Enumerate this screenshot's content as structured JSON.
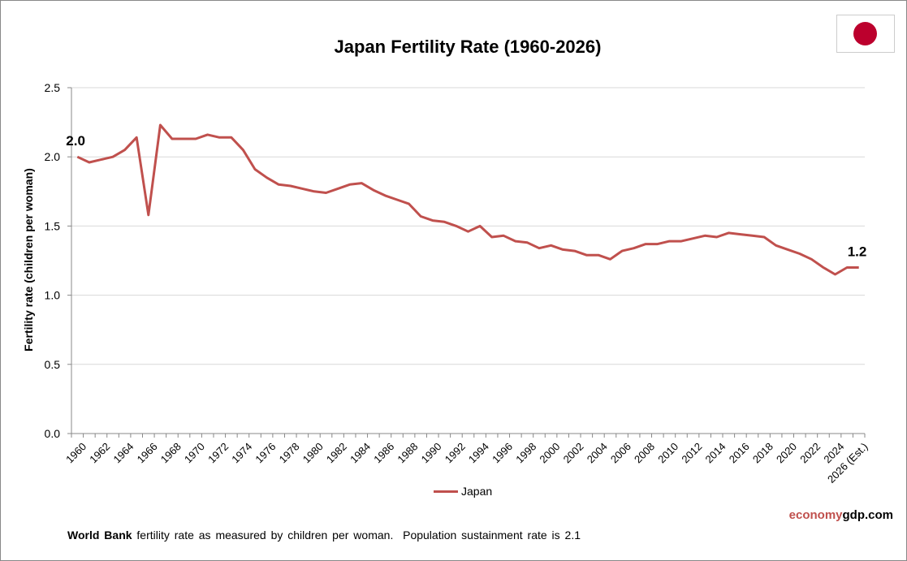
{
  "chart_data": {
    "type": "line",
    "title": "Japan Fertility Rate (1960-2026)",
    "ylabel": "Fertility rate (children per woman)",
    "xlabel": "",
    "ylim": [
      0,
      2.5
    ],
    "yticks": [
      "0.0",
      "0.5",
      "1.0",
      "1.5",
      "2.0",
      "2.5"
    ],
    "grid": true,
    "legend": "bottom",
    "x": [
      1960,
      1961,
      1962,
      1963,
      1964,
      1965,
      1966,
      1967,
      1968,
      1969,
      1970,
      1971,
      1972,
      1973,
      1974,
      1975,
      1976,
      1977,
      1978,
      1979,
      1980,
      1981,
      1982,
      1983,
      1984,
      1985,
      1986,
      1987,
      1988,
      1989,
      1990,
      1991,
      1992,
      1993,
      1994,
      1995,
      1996,
      1997,
      1998,
      1999,
      2000,
      2001,
      2002,
      2003,
      2004,
      2005,
      2006,
      2007,
      2008,
      2009,
      2010,
      2011,
      2012,
      2013,
      2014,
      2015,
      2016,
      2017,
      2018,
      2019,
      2020,
      2021,
      2022,
      2023,
      2024,
      2025,
      2026
    ],
    "xtick_labels": [
      "1960",
      "1962",
      "1964",
      "1966",
      "1968",
      "1970",
      "1972",
      "1974",
      "1976",
      "1978",
      "1980",
      "1982",
      "1984",
      "1986",
      "1988",
      "1990",
      "1992",
      "1994",
      "1996",
      "1998",
      "2000",
      "2002",
      "2004",
      "2006",
      "2008",
      "2010",
      "2012",
      "2014",
      "2016",
      "2018",
      "2020",
      "2022",
      "2024",
      "2026 (Est.)"
    ],
    "series": [
      {
        "name": "Japan",
        "color": "#c0504d",
        "values": [
          2.0,
          1.96,
          1.98,
          2.0,
          2.05,
          2.14,
          1.58,
          2.23,
          2.13,
          2.13,
          2.13,
          2.16,
          2.14,
          2.14,
          2.05,
          1.91,
          1.85,
          1.8,
          1.79,
          1.77,
          1.75,
          1.74,
          1.77,
          1.8,
          1.81,
          1.76,
          1.72,
          1.69,
          1.66,
          1.57,
          1.54,
          1.53,
          1.5,
          1.46,
          1.5,
          1.42,
          1.43,
          1.39,
          1.38,
          1.34,
          1.36,
          1.33,
          1.32,
          1.29,
          1.29,
          1.26,
          1.32,
          1.34,
          1.37,
          1.37,
          1.39,
          1.39,
          1.41,
          1.43,
          1.42,
          1.45,
          1.44,
          1.43,
          1.42,
          1.36,
          1.33,
          1.3,
          1.26,
          1.2,
          1.15,
          1.2,
          1.2
        ]
      }
    ],
    "annotations": {
      "start": "2.0",
      "end": "1.2"
    }
  },
  "flag": "japan-flag",
  "brand": {
    "part1": "economy",
    "part2": "gdp.com"
  },
  "footer": {
    "bold": "World Bank",
    "text": " fertility rate as measured by children per woman.  Population sustainment rate is 2.1"
  }
}
